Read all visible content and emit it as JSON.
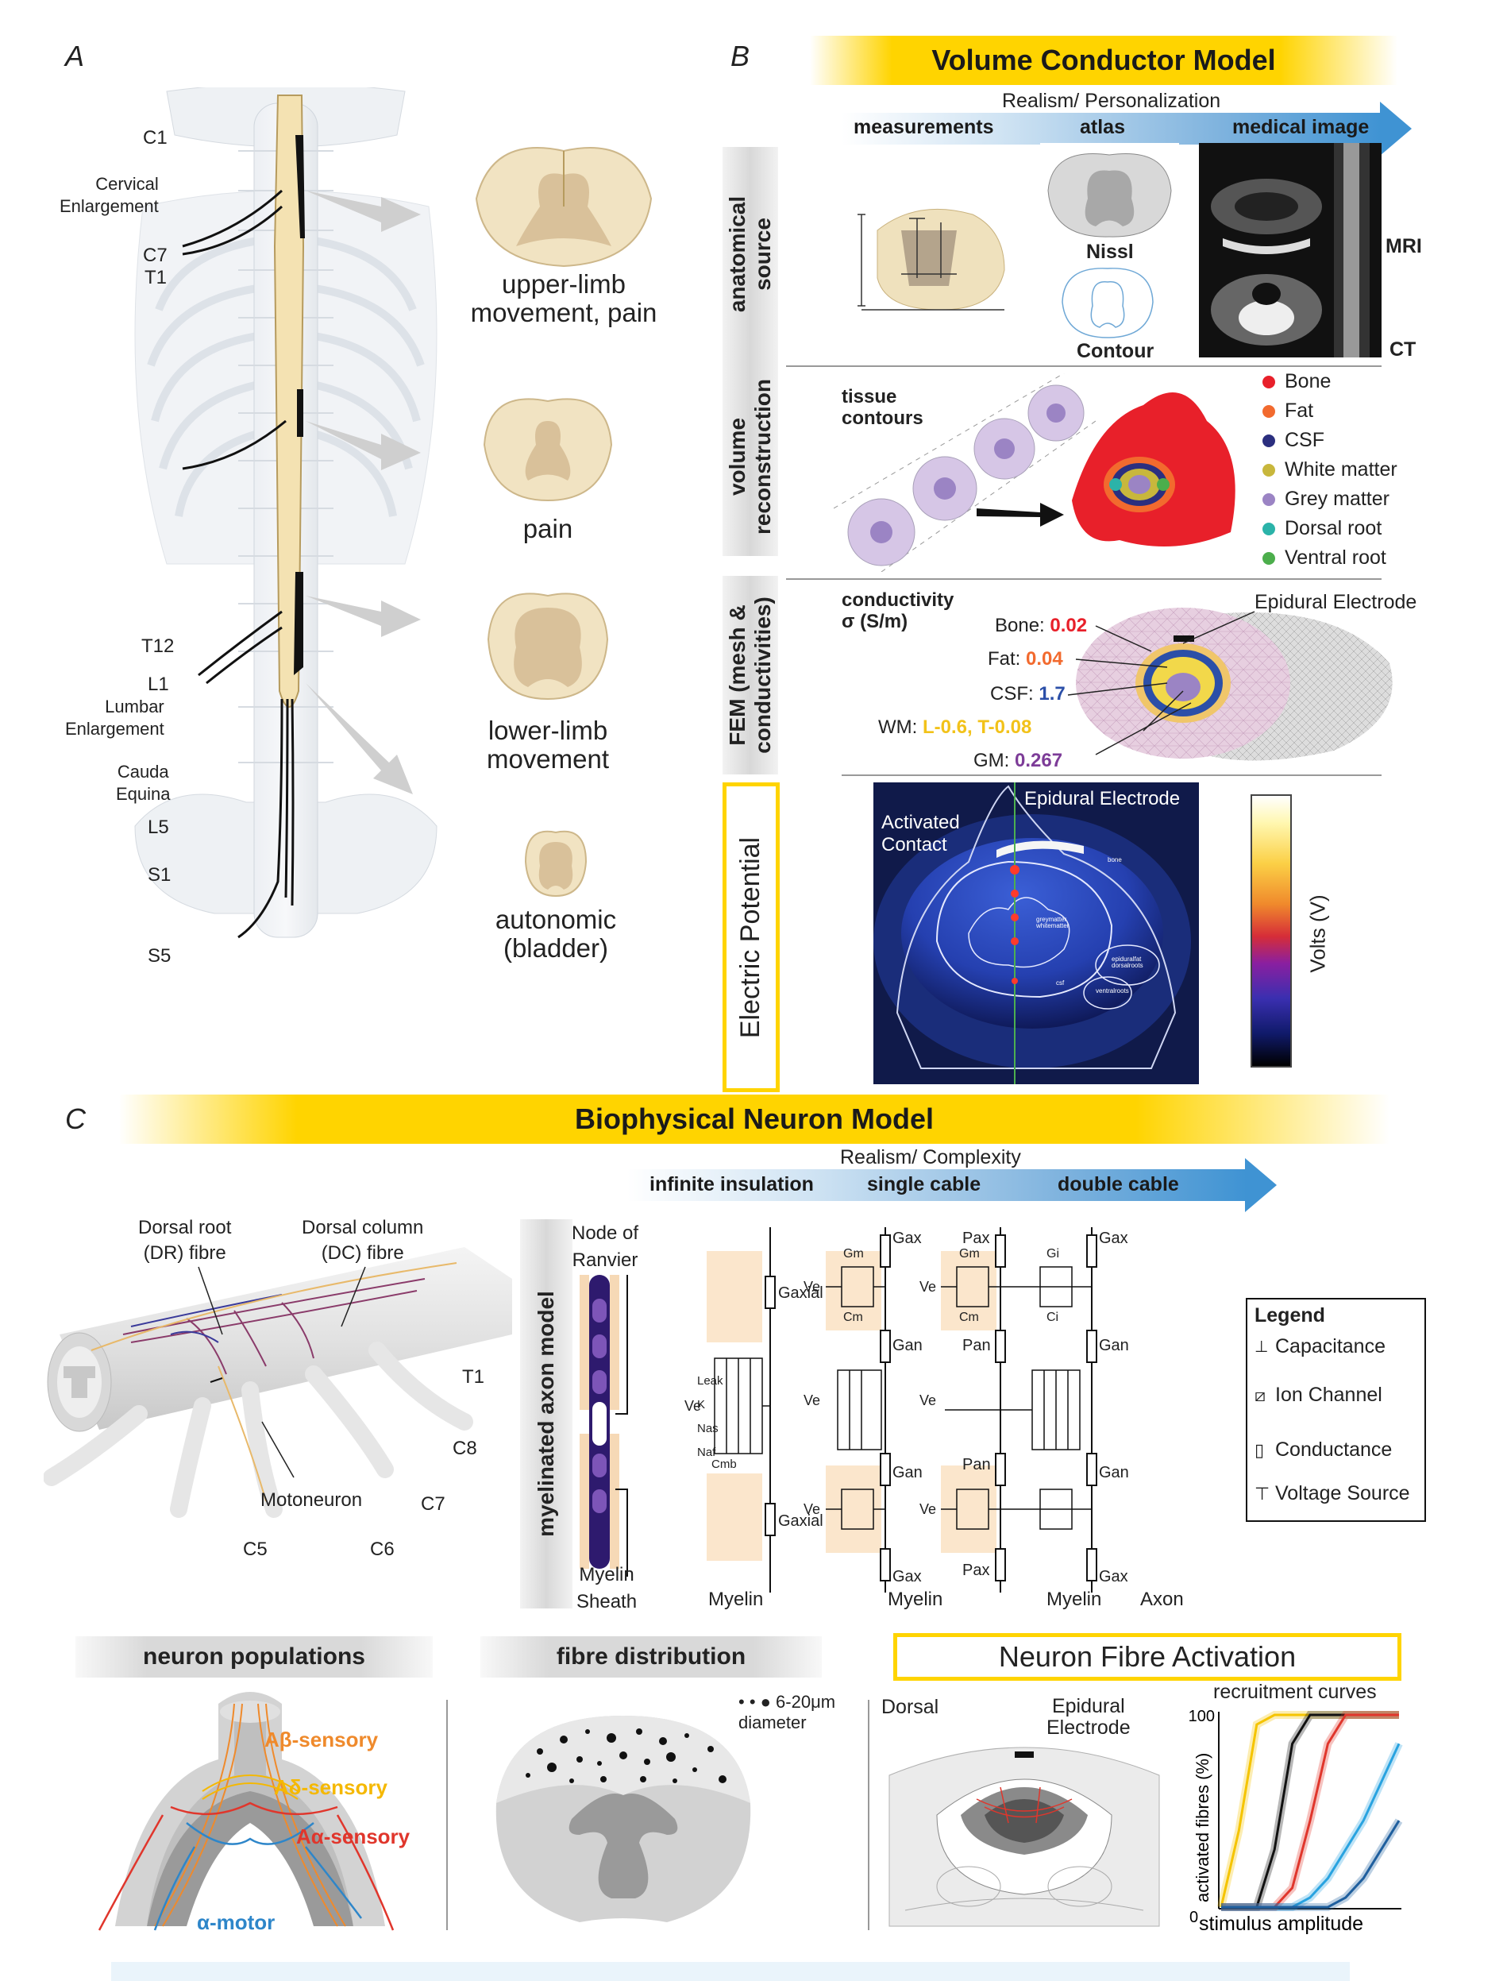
{
  "panels": {
    "a": "A",
    "b": "B",
    "c": "C"
  },
  "spine": {
    "levels": {
      "c1": "C1",
      "cervical": "Cervical\nEnlargement",
      "c7": "C7",
      "t1": "T1",
      "t12": "T12",
      "l1": "L1",
      "lumbar": "Lumbar\nEnlargement",
      "cauda": "Cauda\nEquina",
      "l5": "L5",
      "s1": "S1",
      "s5": "S5"
    },
    "cross_sections": [
      {
        "label": "upper-limb\nmovement, pain"
      },
      {
        "label": "pain"
      },
      {
        "label": "lower-limb\nmovement"
      },
      {
        "label": "autonomic\n(bladder)"
      }
    ]
  },
  "volume_model": {
    "title": "Volume Conductor Model",
    "axis_title": "Realism/ Personalization",
    "axis_labels": [
      "measurements",
      "atlas",
      "medical image"
    ],
    "rows": [
      {
        "label": "anatomical\nsource"
      },
      {
        "label": "volume\nreconstruction"
      },
      {
        "label": "FEM (mesh &\nconductivities)"
      },
      {
        "label": "Electric Potential"
      }
    ],
    "anatomical": {
      "nissl": "Nissl",
      "contour": "Contour",
      "mri": "MRI",
      "ct": "CT"
    },
    "reconstruction": {
      "tissue_contours": "tissue\ncontours",
      "tissues": [
        {
          "name": "Bone",
          "color": "#e8202a"
        },
        {
          "name": "Fat",
          "color": "#f26a2e"
        },
        {
          "name": "CSF",
          "color": "#2b2f7f"
        },
        {
          "name": "White matter",
          "color": "#c8b73c"
        },
        {
          "name": "Grey matter",
          "color": "#9b84c4"
        },
        {
          "name": "Dorsal root",
          "color": "#2bb3a9"
        },
        {
          "name": "Ventral root",
          "color": "#4cae4c"
        }
      ]
    },
    "fem": {
      "heading": "conductivity\nσ (S/m)",
      "electrode": "Epidural Electrode",
      "values": [
        {
          "name": "Bone:",
          "value": "0.02",
          "color": "#e8202a"
        },
        {
          "name": "Fat:",
          "value": "0.04",
          "color": "#f26a2e"
        },
        {
          "name": "CSF:",
          "value": "1.7",
          "color": "#2b4fa8"
        },
        {
          "name": "WM:",
          "value": "L-0.6, T-0.08",
          "color": "#f2c21a"
        },
        {
          "name": "GM:",
          "value": "0.267",
          "color": "#7d3c98"
        }
      ]
    },
    "potential": {
      "activated": "Activated\nContact",
      "electrode": "Epidural Electrode",
      "colorbar_label": "Volts (V)",
      "tiny_labels": [
        "bone",
        "greymatter",
        "whitematter",
        "epiduralfat",
        "dorsalroots",
        "ventralroots",
        "csf"
      ]
    }
  },
  "neuron_model": {
    "title": "Biophysical Neuron Model",
    "axis_title": "Realism/ Complexity",
    "axis_labels": [
      "infinite insulation",
      "single cable",
      "double cable"
    ],
    "dr_fibre": "Dorsal root\n(DR) fibre",
    "dc_fibre": "Dorsal column\n(DC) fibre",
    "motoneuron": "Motoneuron",
    "roots": {
      "t1": "T1",
      "c8": "C8",
      "c7": "C7",
      "c6": "C6",
      "c5": "C5"
    },
    "axon_tab": "myelinated axon model",
    "node_label": "Node of\nRanvier",
    "myelin_sheath": "Myelin\nSheath",
    "myelin": "Myelin",
    "axon": "Axon",
    "circuit": {
      "g_axial": "Gaxial",
      "g_ax": "Gax",
      "g_an": "Gan",
      "p_ax": "Pax",
      "p_an": "Pan",
      "g_m": "Gm",
      "c_m": "Cm",
      "g_i": "Gi",
      "c_i": "Ci",
      "v_e": "Ve",
      "channels": [
        "Naf",
        "Nas",
        "K",
        "Leak"
      ],
      "c_mb": "Cmb"
    },
    "legend": {
      "title": "Legend",
      "items": [
        "Capacitance",
        "Ion Channel",
        "Conductance",
        "Voltage Source"
      ]
    }
  },
  "bottom": {
    "neuron_populations": {
      "title": "neuron populations",
      "labels": [
        {
          "name": "Aβ-sensory",
          "color": "#ef8a2c"
        },
        {
          "name": "Aδ-sensory",
          "color": "#f5b800"
        },
        {
          "name": "Aα-sensory",
          "color": "#e0362c"
        },
        {
          "name": "α-motor",
          "color": "#2e86c9"
        }
      ]
    },
    "fibre_distribution": {
      "title": "fibre distribution",
      "legend": "6-20μm\ndiameter"
    },
    "activation": {
      "title": "Neuron Fibre Activation",
      "dorsal": "Dorsal",
      "electrode": "Epidural\nElectrode",
      "chart_title": "recruitment curves"
    }
  },
  "chart_data": {
    "type": "line",
    "title": "recruitment curves",
    "xlabel": "stimulus amplitude",
    "ylabel": "activated fibres (%)",
    "ylim": [
      0,
      100
    ],
    "yticks": [
      "0",
      "100"
    ],
    "x": [
      0,
      0.1,
      0.2,
      0.3,
      0.4,
      0.5,
      0.6,
      0.7,
      0.8,
      0.9,
      1.0
    ],
    "series": [
      {
        "color": "#f5c400",
        "values": [
          0,
          40,
          95,
          100,
          100,
          100,
          100,
          100,
          100,
          100,
          100
        ]
      },
      {
        "color": "#111111",
        "values": [
          0,
          0,
          0,
          30,
          85,
          100,
          100,
          100,
          100,
          100,
          100
        ]
      },
      {
        "color": "#e0362c",
        "values": [
          0,
          0,
          0,
          0,
          10,
          45,
          85,
          100,
          100,
          100,
          100
        ]
      },
      {
        "color": "#29a3e0",
        "values": [
          0,
          0,
          0,
          0,
          0,
          5,
          15,
          30,
          45,
          65,
          85
        ]
      },
      {
        "color": "#1f5f9e",
        "values": [
          0,
          0,
          0,
          0,
          0,
          0,
          0,
          5,
          15,
          30,
          45
        ]
      }
    ]
  }
}
